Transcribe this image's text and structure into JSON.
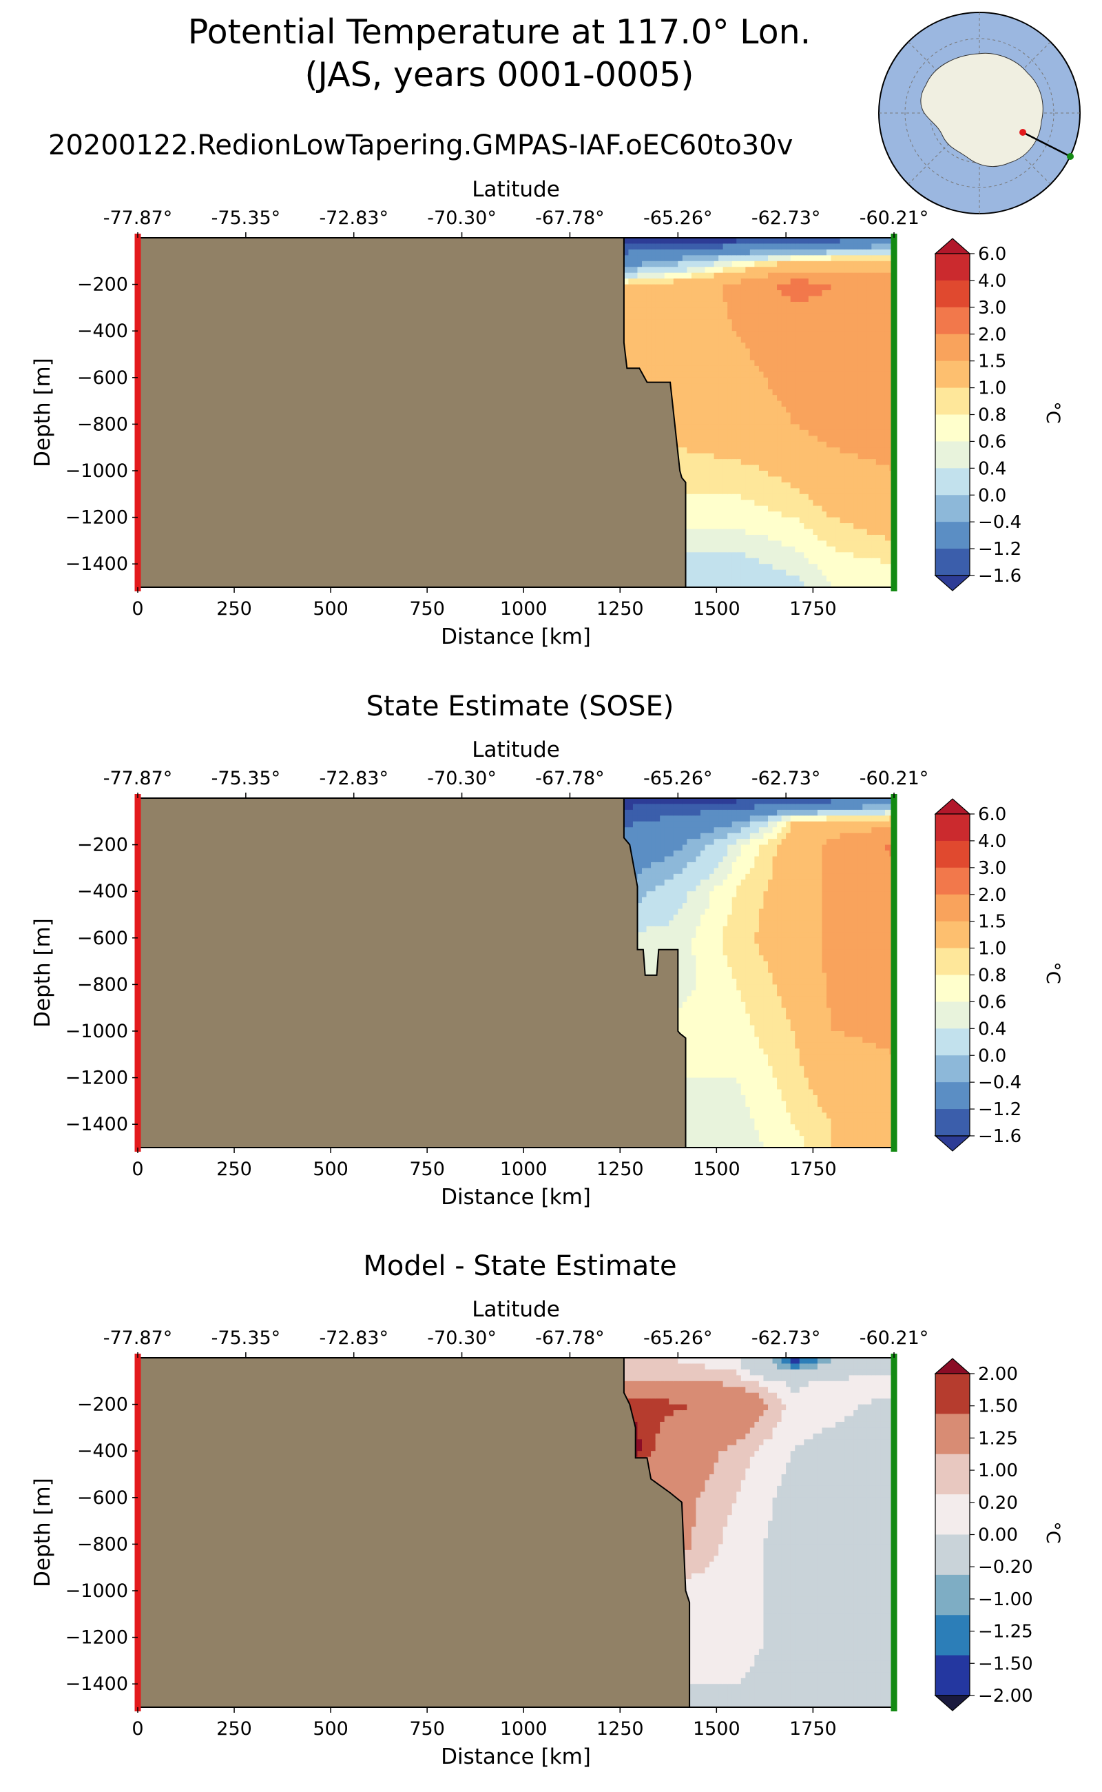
{
  "title_line1": "Potential Temperature at 117.0° Lon.",
  "title_line2": "(JAS, years 0001-0005)",
  "run_name": "20200122.RedionLowTapering.GMPAS-IAF.oEC60to30v",
  "colors": {
    "land": "#918166",
    "start_marker": "#e31a1c",
    "end_marker": "#138a13",
    "ocean_map": "#9bb7e0",
    "continent_map": "#f0efe1"
  },
  "chart_data": [
    {
      "type": "heatmap",
      "title": "",
      "xlabel": "Distance [km]",
      "ylabel": "Depth [m]",
      "top_xlabel": "Latitude",
      "xlim": [
        0,
        1960
      ],
      "ylim": [
        -1500,
        0
      ],
      "x_ticks": [
        "0",
        "250",
        "500",
        "750",
        "1000",
        "1250",
        "1500",
        "1750"
      ],
      "y_ticks": [
        "−200",
        "−400",
        "−600",
        "−800",
        "−1000",
        "−1200",
        "−1400"
      ],
      "top_ticks": [
        "-77.87°",
        "-75.35°",
        "-72.83°",
        "-70.30°",
        "-67.78°",
        "-65.26°",
        "-62.73°",
        "-60.21°"
      ],
      "colorbar_label": "°C",
      "colorbar_ticks": [
        "6.0",
        "4.0",
        "3.0",
        "2.0",
        "1.5",
        "1.0",
        "0.8",
        "0.6",
        "0.4",
        "0.0",
        "−0.4",
        "−1.2",
        "−1.6"
      ],
      "colorbar_colors": [
        "#b2182b",
        "#cb2a2e",
        "#e0492f",
        "#f2784b",
        "#f9a35c",
        "#fdbf6f",
        "#fee79a",
        "#ffffcc",
        "#e8f3dc",
        "#c2e1ed",
        "#8db8d9",
        "#5b8ec4",
        "#3b5eab",
        "#2d3c96"
      ],
      "shelf_edge_km": [
        1260,
        1260,
        1268,
        1300,
        1320,
        1380,
        1405,
        1410,
        1420,
        1420
      ],
      "shelf_edge_depth": [
        0,
        -450,
        -560,
        -560,
        -620,
        -620,
        -1000,
        -1030,
        -1050,
        -1500
      ],
      "field": {
        "x_km": [
          1260,
          1400,
          1550,
          1700,
          1800,
          1960
        ],
        "depth_m": [
          -20,
          -100,
          -200,
          -400,
          -600,
          -800,
          -1000,
          -1200,
          -1400,
          -1500
        ],
        "values": [
          [
            -1.7,
            -1.7,
            -1.6,
            -1.5,
            -1.3,
            -0.6
          ],
          [
            -0.8,
            -0.2,
            0.5,
            1.0,
            1.2,
            1.2
          ],
          [
            1.0,
            1.2,
            1.6,
            2.2,
            2.0,
            1.8
          ],
          [
            1.1,
            1.3,
            1.5,
            1.7,
            1.8,
            1.9
          ],
          [
            null,
            1.2,
            1.4,
            1.6,
            1.8,
            1.8
          ],
          [
            null,
            1.1,
            1.3,
            1.5,
            1.7,
            1.8
          ],
          [
            null,
            null,
            0.9,
            1.1,
            1.3,
            1.5
          ],
          [
            null,
            null,
            0.7,
            0.8,
            1.0,
            1.2
          ],
          [
            null,
            null,
            0.3,
            0.5,
            0.7,
            0.8
          ],
          [
            null,
            null,
            0.1,
            0.3,
            0.6,
            0.8
          ]
        ]
      }
    },
    {
      "type": "heatmap",
      "title": "State Estimate (SOSE)",
      "xlabel": "Distance [km]",
      "ylabel": "Depth [m]",
      "top_xlabel": "Latitude",
      "xlim": [
        0,
        1960
      ],
      "ylim": [
        -1500,
        0
      ],
      "x_ticks": [
        "0",
        "250",
        "500",
        "750",
        "1000",
        "1250",
        "1500",
        "1750"
      ],
      "y_ticks": [
        "−200",
        "−400",
        "−600",
        "−800",
        "−1000",
        "−1200",
        "−1400"
      ],
      "top_ticks": [
        "-77.87°",
        "-75.35°",
        "-72.83°",
        "-70.30°",
        "-67.78°",
        "-65.26°",
        "-62.73°",
        "-60.21°"
      ],
      "colorbar_label": "°C",
      "colorbar_ticks": [
        "6.0",
        "4.0",
        "3.0",
        "2.0",
        "1.5",
        "1.0",
        "0.8",
        "0.6",
        "0.4",
        "0.0",
        "−0.4",
        "−1.2",
        "−1.6"
      ],
      "colorbar_colors": [
        "#b2182b",
        "#cb2a2e",
        "#e0492f",
        "#f2784b",
        "#f9a35c",
        "#fdbf6f",
        "#fee79a",
        "#ffffcc",
        "#e8f3dc",
        "#c2e1ed",
        "#8db8d9",
        "#5b8ec4",
        "#3b5eab",
        "#2d3c96"
      ],
      "shelf_edge_km": [
        1260,
        1260,
        1275,
        1295,
        1295,
        1310,
        1315,
        1345,
        1350,
        1400,
        1400,
        1405,
        1420,
        1420
      ],
      "shelf_edge_depth": [
        0,
        -170,
        -200,
        -380,
        -650,
        -650,
        -760,
        -760,
        -650,
        -650,
        -1000,
        -1010,
        -1030,
        -1500
      ],
      "field": {
        "x_km": [
          1260,
          1400,
          1550,
          1700,
          1800,
          1960
        ],
        "depth_m": [
          -20,
          -100,
          -200,
          -400,
          -600,
          -800,
          -1000,
          -1200,
          -1400,
          -1500
        ],
        "values": [
          [
            -1.7,
            -1.7,
            -1.6,
            -1.4,
            -1.2,
            -0.5
          ],
          [
            -1.3,
            -1.0,
            -0.5,
            1.0,
            1.2,
            1.3
          ],
          [
            -1.0,
            -0.5,
            0.5,
            1.2,
            1.6,
            2.1
          ],
          [
            -0.3,
            0.3,
            0.8,
            1.2,
            1.6,
            1.8
          ],
          [
            null,
            0.5,
            0.9,
            1.2,
            1.6,
            1.7
          ],
          [
            null,
            0.5,
            0.8,
            1.1,
            1.6,
            1.7
          ],
          [
            null,
            null,
            0.7,
            1.0,
            1.5,
            1.6
          ],
          [
            null,
            null,
            0.6,
            0.9,
            1.2,
            1.4
          ],
          [
            null,
            null,
            0.5,
            0.8,
            1.0,
            1.2
          ],
          [
            null,
            null,
            0.5,
            0.7,
            1.0,
            1.1
          ]
        ]
      }
    },
    {
      "type": "heatmap",
      "title": "Model - State Estimate",
      "xlabel": "Distance [km]",
      "ylabel": "Depth [m]",
      "top_xlabel": "Latitude",
      "xlim": [
        0,
        1960
      ],
      "ylim": [
        -1500,
        0
      ],
      "x_ticks": [
        "0",
        "250",
        "500",
        "750",
        "1000",
        "1250",
        "1500",
        "1750"
      ],
      "y_ticks": [
        "−200",
        "−400",
        "−600",
        "−800",
        "−1000",
        "−1200",
        "−1400"
      ],
      "top_ticks": [
        "-77.87°",
        "-75.35°",
        "-72.83°",
        "-70.30°",
        "-67.78°",
        "-65.26°",
        "-62.73°",
        "-60.21°"
      ],
      "colorbar_label": "°C",
      "colorbar_ticks": [
        "2.00",
        "1.50",
        "1.25",
        "1.00",
        "0.20",
        "0.00",
        "−0.20",
        "−1.00",
        "−1.25",
        "−1.50",
        "−2.00"
      ],
      "colorbar_colors": [
        "#8b0d26",
        "#b63c2e",
        "#d88c74",
        "#e8c8c0",
        "#f3ecec",
        "#c9d3d9",
        "#7eadc4",
        "#2c7eb8",
        "#2437a0",
        "#1a1a3e"
      ],
      "shelf_edge_km": [
        1260,
        1260,
        1275,
        1290,
        1290,
        1320,
        1330,
        1380,
        1410,
        1420,
        1430,
        1430
      ],
      "shelf_edge_depth": [
        0,
        -150,
        -200,
        -300,
        -430,
        -430,
        -520,
        -580,
        -620,
        -1000,
        -1050,
        -1500
      ],
      "field": {
        "x_km": [
          1260,
          1400,
          1550,
          1700,
          1800,
          1960
        ],
        "depth_m": [
          -20,
          -100,
          -200,
          -400,
          -600,
          -800,
          -1000,
          -1200,
          -1400,
          -1500
        ],
        "values": [
          [
            0.1,
            0.0,
            -0.1,
            -1.6,
            -1.0,
            -0.5
          ],
          [
            0.1,
            0.2,
            0.1,
            -0.3,
            -0.1,
            0.0
          ],
          [
            1.2,
            1.1,
            0.6,
            -0.1,
            -0.1,
            -0.3
          ],
          [
            1.6,
            0.5,
            0.1,
            -0.2,
            -0.3,
            -0.4
          ],
          [
            null,
            0.3,
            0.0,
            -0.3,
            -0.4,
            -0.3
          ],
          [
            null,
            0.3,
            -0.1,
            -0.3,
            -0.4,
            -0.2
          ],
          [
            null,
            null,
            -0.1,
            -0.3,
            -0.4,
            -0.3
          ],
          [
            null,
            null,
            -0.1,
            -0.3,
            -0.4,
            -0.3
          ],
          [
            null,
            null,
            -0.2,
            -0.3,
            -0.4,
            -0.3
          ],
          [
            null,
            null,
            -0.3,
            -0.4,
            -0.4,
            -0.3
          ]
        ]
      }
    }
  ]
}
